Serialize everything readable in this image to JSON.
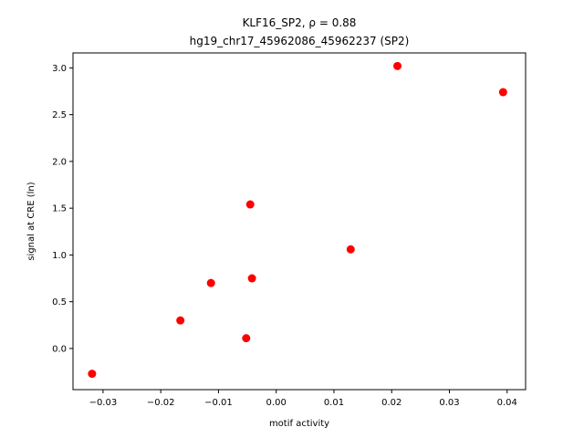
{
  "chart_data": {
    "type": "scatter",
    "title_lines": [
      "KLF16_SP2, ρ = 0.88",
      "hg19_chr17_45962086_45962237 (SP2)"
    ],
    "xlabel": "motif activity",
    "ylabel": "signal at CRE (ln)",
    "xlim": [
      -0.0352,
      0.0432
    ],
    "ylim": [
      -0.44,
      3.16
    ],
    "xticks": [
      -0.03,
      -0.02,
      -0.01,
      0.0,
      0.01,
      0.02,
      0.03,
      0.04
    ],
    "xtick_labels": [
      "−0.03",
      "−0.02",
      "−0.01",
      "0.00",
      "0.01",
      "0.02",
      "0.03",
      "0.04"
    ],
    "yticks": [
      0.0,
      0.5,
      1.0,
      1.5,
      2.0,
      2.5,
      3.0
    ],
    "ytick_labels": [
      "0.0",
      "0.5",
      "1.0",
      "1.5",
      "2.0",
      "2.5",
      "3.0"
    ],
    "grid": false,
    "marker_color": "#ff0000",
    "points": [
      {
        "x": -0.0319,
        "y": -0.27
      },
      {
        "x": -0.0166,
        "y": 0.3
      },
      {
        "x": -0.0113,
        "y": 0.7
      },
      {
        "x": -0.0052,
        "y": 0.11
      },
      {
        "x": -0.0045,
        "y": 1.54
      },
      {
        "x": -0.0042,
        "y": 0.75
      },
      {
        "x": 0.0129,
        "y": 1.06
      },
      {
        "x": 0.021,
        "y": 3.02
      },
      {
        "x": 0.0393,
        "y": 2.74
      }
    ]
  }
}
